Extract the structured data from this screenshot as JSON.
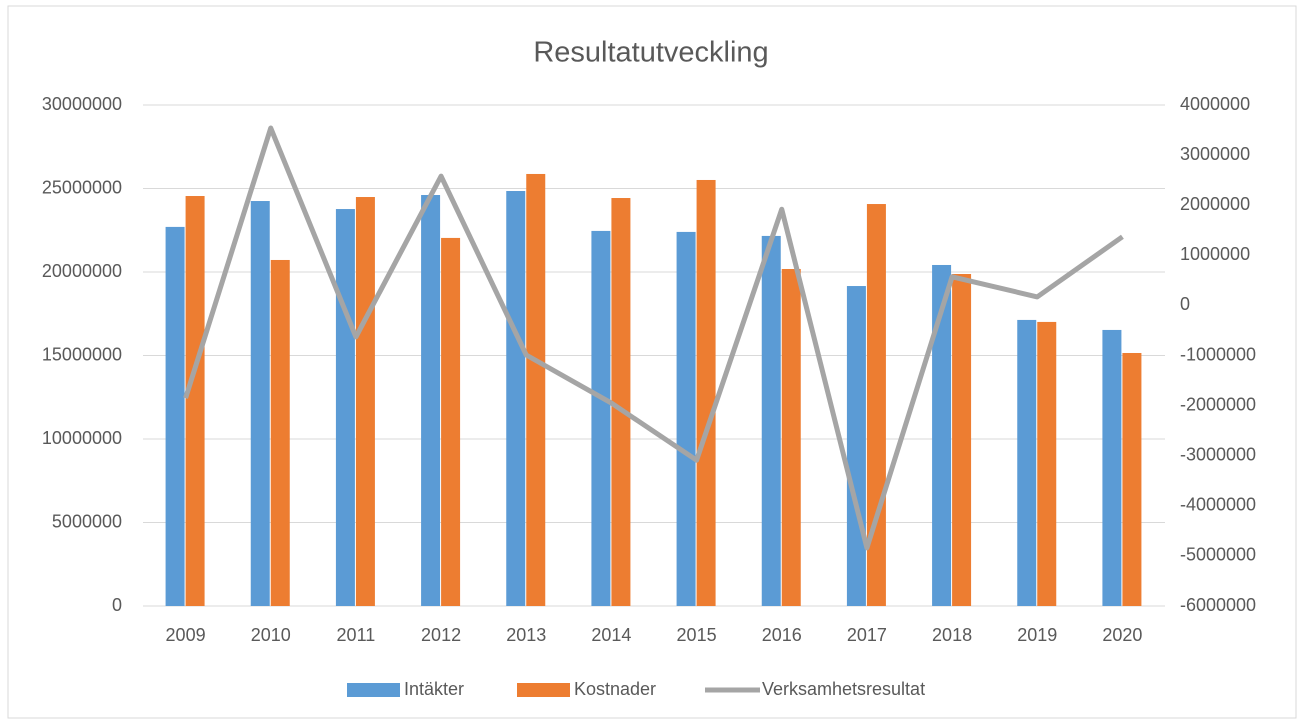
{
  "chart_data": {
    "type": "bar",
    "title": "Resultatutveckling",
    "categories": [
      "2009",
      "2010",
      "2011",
      "2012",
      "2013",
      "2014",
      "2015",
      "2016",
      "2017",
      "2018",
      "2019",
      "2020"
    ],
    "series": [
      {
        "name": "Intäkter",
        "color": "#5b9bd5",
        "type": "bar",
        "values": [
          22700000,
          24250000,
          23770000,
          24610000,
          24850000,
          22460000,
          22400000,
          22160000,
          19160000,
          20420000,
          17130000,
          16530000
        ]
      },
      {
        "name": "Kostnader",
        "color": "#ed7d31",
        "type": "bar",
        "values": [
          24550000,
          20720000,
          24490000,
          22040000,
          25870000,
          24430000,
          25510000,
          20180000,
          24070000,
          19880000,
          17010000,
          15150000
        ]
      },
      {
        "name": "Verksamhetsresultat",
        "color": "#a5a5a5",
        "type": "line",
        "axis": "y2",
        "values": [
          -1850000,
          3540000,
          -630000,
          2580000,
          -990000,
          -1950000,
          -3090000,
          1920000,
          -4840000,
          570000,
          170000,
          1370000
        ]
      }
    ],
    "ylim": [
      0,
      30000000
    ],
    "yticks": [
      0,
      5000000,
      10000000,
      15000000,
      20000000,
      25000000,
      30000000
    ],
    "y2lim": [
      -6000000,
      4000000
    ],
    "y2ticks": [
      -6000000,
      -5000000,
      -4000000,
      -3000000,
      -2000000,
      -1000000,
      0,
      1000000,
      2000000,
      3000000,
      4000000
    ],
    "grid": true,
    "legend": "bottom"
  }
}
